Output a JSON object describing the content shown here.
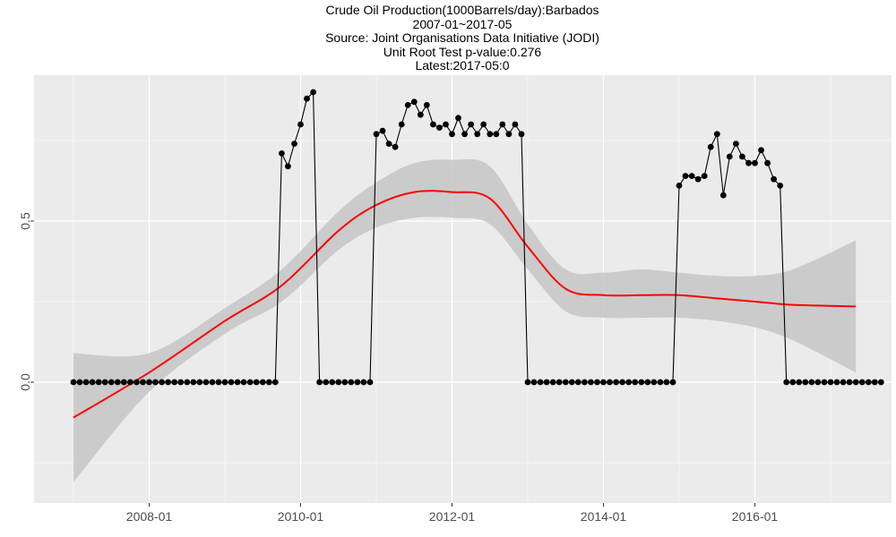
{
  "titles": {
    "line1": "Crude Oil Production(1000Barrels/day):Barbados",
    "line2": "2007-01~2017-05",
    "line3": "Source: Joint Organisations Data Initiative (JODI)",
    "line4": "Unit Root Test p-value:0.276",
    "line5": "Latest:2017-05:0"
  },
  "chart_data": {
    "type": "line",
    "title": "Crude Oil Production(1000Barrels/day):Barbados",
    "subtitle": "2007-01~2017-05",
    "x_ticks": [
      "2008-01",
      "2010-01",
      "2012-01",
      "2014-01",
      "2016-01"
    ],
    "y_ticks": [
      "0.0",
      "0.5"
    ],
    "ylim": [
      -0.37,
      0.95
    ],
    "grid": true,
    "colors": {
      "panel": "#ebebeb",
      "grid": "#ffffff",
      "series": "#000000",
      "trend": "#ff0000",
      "band": "#c8c8c8"
    },
    "series": [
      {
        "x_start": "2007-01",
        "x_end": "2017-05",
        "values": [
          0,
          0,
          0,
          0,
          0,
          0,
          0,
          0,
          0,
          0,
          0,
          0,
          0,
          0,
          0,
          0,
          0,
          0,
          0,
          0,
          0,
          0,
          0,
          0,
          0,
          0,
          0,
          0,
          0,
          0,
          0,
          0,
          0,
          0.71,
          0.67,
          0.74,
          0.8,
          0.88,
          0.9,
          0,
          0,
          0,
          0,
          0,
          0,
          0,
          0,
          0,
          0.77,
          0.78,
          0.74,
          0.73,
          0.8,
          0.86,
          0.87,
          0.83,
          0.86,
          0.8,
          0.79,
          0.8,
          0.77,
          0.82,
          0.77,
          0.8,
          0.77,
          0.8,
          0.77,
          0.77,
          0.8,
          0.77,
          0.8,
          0.77,
          0,
          0,
          0,
          0,
          0,
          0,
          0,
          0,
          0,
          0,
          0,
          0,
          0,
          0,
          0,
          0,
          0,
          0,
          0,
          0,
          0,
          0,
          0,
          0,
          0.61,
          0.64,
          0.64,
          0.63,
          0.64,
          0.73,
          0.77,
          0.58,
          0.7,
          0.74,
          0.7,
          0.68,
          0.68,
          0.72,
          0.68,
          0.63,
          0.61,
          0,
          0,
          0,
          0,
          0,
          0,
          0,
          0,
          0,
          0,
          0,
          0,
          0,
          0,
          0,
          0
        ]
      },
      {
        "kind": "smooth",
        "x": [
          "2007-01",
          "2008-01",
          "2009-01",
          "2009-10",
          "2010-07",
          "2011-01",
          "2011-07",
          "2012-01",
          "2012-07",
          "2013-01",
          "2013-07",
          "2014-01",
          "2014-07",
          "2015-01",
          "2015-07",
          "2016-01",
          "2016-07",
          "2017-05"
        ],
        "y": [
          -0.11,
          0.03,
          0.19,
          0.3,
          0.47,
          0.55,
          0.59,
          0.59,
          0.57,
          0.42,
          0.29,
          0.27,
          0.27,
          0.27,
          0.26,
          0.25,
          0.24,
          0.235
        ],
        "lower": [
          -0.31,
          -0.03,
          0.15,
          0.25,
          0.41,
          0.48,
          0.51,
          0.51,
          0.49,
          0.35,
          0.22,
          0.2,
          0.2,
          0.2,
          0.19,
          0.17,
          0.13,
          0.03
        ],
        "upper": [
          0.09,
          0.09,
          0.23,
          0.35,
          0.53,
          0.62,
          0.68,
          0.69,
          0.67,
          0.49,
          0.35,
          0.34,
          0.35,
          0.34,
          0.33,
          0.33,
          0.35,
          0.44
        ]
      }
    ]
  }
}
